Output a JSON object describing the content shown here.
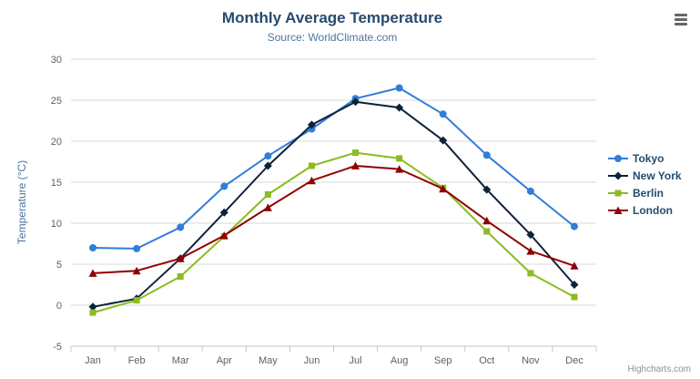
{
  "chart": {
    "title": "Monthly Average Temperature",
    "subtitle": "Source: WorldClimate.com",
    "credits": "Highcharts.com",
    "menu_icon": "hamburger-icon"
  },
  "chart_data": {
    "type": "line",
    "title": "Monthly Average Temperature",
    "subtitle": "Source: WorldClimate.com",
    "xlabel": "",
    "ylabel": "Temperature (°C)",
    "ylim": [
      -5,
      30
    ],
    "ytick_interval": 5,
    "grid": true,
    "legend_position": "right",
    "categories": [
      "Jan",
      "Feb",
      "Mar",
      "Apr",
      "May",
      "Jun",
      "Jul",
      "Aug",
      "Sep",
      "Oct",
      "Nov",
      "Dec"
    ],
    "series": [
      {
        "name": "Tokyo",
        "color": "#2f7ed8",
        "marker": "circle",
        "values": [
          7.0,
          6.9,
          9.5,
          14.5,
          18.2,
          21.5,
          25.2,
          26.5,
          23.3,
          18.3,
          13.9,
          9.6
        ]
      },
      {
        "name": "New York",
        "color": "#0d233a",
        "marker": "diamond",
        "values": [
          -0.2,
          0.8,
          5.7,
          11.3,
          17.0,
          22.0,
          24.8,
          24.1,
          20.1,
          14.1,
          8.6,
          2.5
        ]
      },
      {
        "name": "Berlin",
        "color": "#8bbc21",
        "marker": "square",
        "values": [
          -0.9,
          0.6,
          3.5,
          8.4,
          13.5,
          17.0,
          18.6,
          17.9,
          14.3,
          9.0,
          3.9,
          1.0
        ]
      },
      {
        "name": "London",
        "color": "#910000",
        "marker": "triangle",
        "values": [
          3.9,
          4.2,
          5.7,
          8.5,
          11.9,
          15.2,
          17.0,
          16.6,
          14.2,
          10.3,
          6.6,
          4.8
        ]
      }
    ],
    "axis_colors": {
      "grid_line": "#d8d8d8",
      "axis_line": "#c0c8d0",
      "tick_label": "#606060"
    }
  }
}
